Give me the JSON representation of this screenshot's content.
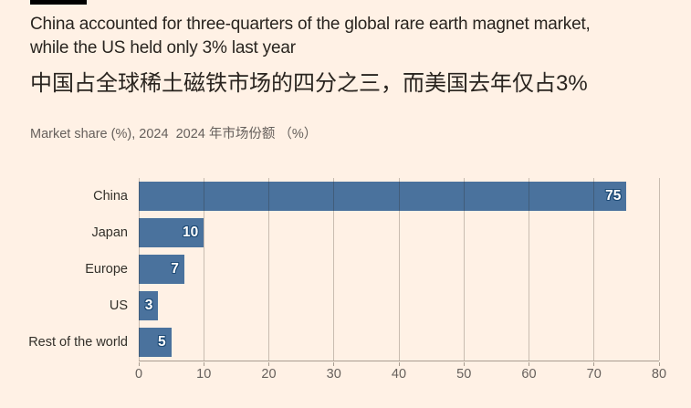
{
  "colors": {
    "background": "#FFF1E5",
    "accent_bar": "#000000",
    "title_text": "#29241F",
    "muted_text": "#66605C",
    "category_text": "#33302A",
    "bar": "#4A729D",
    "value_label": "#FFFFFF",
    "value_label_halo": "#1E4B76",
    "gridline": "rgba(40,30,20,0.25)",
    "axis": "#A89C90"
  },
  "header": {
    "title_en_line1": "China accounted for three-quarters of the global rare earth magnet market,",
    "title_en_line2": "while the US held only 3% last year",
    "title_zh": "中国占全球稀土磁铁市场的四分之三，而美国去年仅占3%",
    "subtitle": "Market share (%), 2024  2024 年市场份额 （%）"
  },
  "chart_data": {
    "type": "bar",
    "orientation": "horizontal",
    "title": "China accounted for three-quarters of the global rare earth magnet market, while the US held only 3% last year",
    "title_zh": "中国占全球稀土磁铁市场的四分之三，而美国去年仅占3%",
    "axis_caption": "Market share (%), 2024  2024 年市场份额 （%）",
    "categories": [
      "China",
      "Japan",
      "Europe",
      "US",
      "Rest of the world"
    ],
    "values": [
      75,
      10,
      7,
      3,
      5
    ],
    "xlabel": "",
    "ylabel": "",
    "xlim": [
      0,
      80
    ],
    "xticks": [
      0,
      10,
      20,
      30,
      40,
      50,
      60,
      70,
      80
    ],
    "grid": "vertical-gridlines-over-bars",
    "legend": "none",
    "value_labels": "inside-bar-end, white bold with dark halo"
  }
}
